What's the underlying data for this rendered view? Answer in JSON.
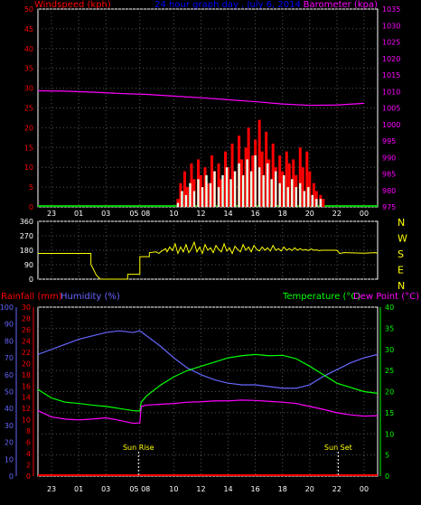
{
  "header": {
    "left_label": "Windspeed (kph)",
    "center_label": "24 hour graph day , July 6, 2014",
    "right_label": "Barometer (kpa)"
  },
  "colors": {
    "background": "#000000",
    "panel_border": "#ffffff",
    "grid": "#555555",
    "axis_red": "#ff0000",
    "axis_magenta": "#ff00ff",
    "axis_blue": "#6666ff",
    "axis_green": "#00ff00",
    "axis_yellow": "#ffff00",
    "wind_gust": "#ff0000",
    "wind_avg": "#e8ffe8",
    "wind_base": "#00cc00",
    "barometer": "#ff00ff",
    "direction": "#ffff00",
    "humidity": "#6666ff",
    "temperature": "#00ff00",
    "dew_point": "#ff00ff",
    "rain": "#ff0000",
    "sun_marker": "#ffff00"
  },
  "chart_data": [
    {
      "type": "bar",
      "name": "wind",
      "title": "",
      "ylabel": "Windspeed (kph)",
      "ylim": [
        0,
        50
      ],
      "yticks": [
        0,
        5,
        10,
        15,
        20,
        25,
        30,
        35,
        40,
        45,
        50
      ],
      "y2label": "Barometer (kpa)",
      "y2lim": [
        975,
        1035
      ],
      "y2ticks": [
        975,
        980,
        985,
        990,
        995,
        1000,
        1005,
        1010,
        1015,
        1020,
        1025,
        1030,
        1035
      ],
      "xlim": [
        22,
        47
      ],
      "xticks": [
        "23",
        "01",
        "03",
        "05 08",
        "10",
        "12",
        "14",
        "16",
        "18",
        "20",
        "22",
        "00"
      ],
      "xtick_positions": [
        23,
        25,
        27,
        29.5,
        32,
        34,
        36,
        38,
        40,
        42,
        44,
        46
      ],
      "gust_max": [
        [
          32.3,
          2
        ],
        [
          32.5,
          6
        ],
        [
          32.8,
          9
        ],
        [
          33.0,
          5
        ],
        [
          33.3,
          11
        ],
        [
          33.5,
          7
        ],
        [
          33.8,
          12
        ],
        [
          34.0,
          8
        ],
        [
          34.3,
          10
        ],
        [
          34.5,
          6
        ],
        [
          34.8,
          13
        ],
        [
          35.0,
          9
        ],
        [
          35.3,
          11
        ],
        [
          35.5,
          7
        ],
        [
          35.8,
          14
        ],
        [
          36.0,
          10
        ],
        [
          36.3,
          16
        ],
        [
          36.5,
          9
        ],
        [
          36.8,
          18
        ],
        [
          37.0,
          12
        ],
        [
          37.3,
          15
        ],
        [
          37.5,
          20
        ],
        [
          37.8,
          13
        ],
        [
          38.0,
          17
        ],
        [
          38.3,
          22
        ],
        [
          38.5,
          14
        ],
        [
          38.8,
          19
        ],
        [
          39.0,
          12
        ],
        [
          39.3,
          16
        ],
        [
          39.5,
          10
        ],
        [
          39.8,
          13
        ],
        [
          40.0,
          9
        ],
        [
          40.3,
          14
        ],
        [
          40.5,
          11
        ],
        [
          40.8,
          12
        ],
        [
          41.0,
          8
        ],
        [
          41.3,
          15
        ],
        [
          41.5,
          10
        ],
        [
          41.8,
          14
        ],
        [
          42.0,
          9
        ],
        [
          42.3,
          6
        ],
        [
          42.5,
          4
        ],
        [
          42.8,
          3
        ],
        [
          43.0,
          2
        ]
      ],
      "avg_max": [
        [
          32.3,
          1
        ],
        [
          32.6,
          4
        ],
        [
          32.9,
          3
        ],
        [
          33.2,
          6
        ],
        [
          33.5,
          4
        ],
        [
          33.8,
          7
        ],
        [
          34.1,
          5
        ],
        [
          34.4,
          8
        ],
        [
          34.7,
          6
        ],
        [
          35.0,
          9
        ],
        [
          35.3,
          5
        ],
        [
          35.6,
          8
        ],
        [
          35.9,
          10
        ],
        [
          36.2,
          7
        ],
        [
          36.5,
          9
        ],
        [
          36.8,
          11
        ],
        [
          37.1,
          8
        ],
        [
          37.4,
          12
        ],
        [
          37.7,
          9
        ],
        [
          38.0,
          13
        ],
        [
          38.3,
          10
        ],
        [
          38.6,
          8
        ],
        [
          38.9,
          11
        ],
        [
          39.2,
          7
        ],
        [
          39.5,
          9
        ],
        [
          39.8,
          6
        ],
        [
          40.1,
          8
        ],
        [
          40.4,
          5
        ],
        [
          40.7,
          7
        ],
        [
          41.0,
          5
        ],
        [
          41.3,
          6
        ],
        [
          41.6,
          4
        ],
        [
          41.9,
          5
        ],
        [
          42.2,
          3
        ],
        [
          42.5,
          2
        ],
        [
          42.8,
          2
        ]
      ],
      "barometer": [
        [
          22,
          1010.2
        ],
        [
          24,
          1010.1
        ],
        [
          26,
          1009.8
        ],
        [
          28,
          1009.4
        ],
        [
          30,
          1009.1
        ],
        [
          32,
          1008.6
        ],
        [
          34,
          1008.1
        ],
        [
          36,
          1007.5
        ],
        [
          38,
          1006.9
        ],
        [
          40,
          1006.2
        ],
        [
          42,
          1005.8
        ],
        [
          44,
          1005.9
        ],
        [
          46,
          1006.4
        ]
      ]
    },
    {
      "type": "line",
      "name": "wind_direction",
      "title": "",
      "ylim": [
        0,
        360
      ],
      "yticks": [
        0,
        90,
        180,
        270,
        360
      ],
      "right_labels": [
        "N",
        "W",
        "S",
        "E",
        "N"
      ],
      "xlim": [
        22,
        47
      ],
      "direction": [
        [
          22,
          160
        ],
        [
          25.9,
          160
        ],
        [
          25.9,
          90
        ],
        [
          26,
          75
        ],
        [
          26.3,
          25
        ],
        [
          26.6,
          0
        ],
        [
          28.6,
          0
        ],
        [
          28.6,
          30
        ],
        [
          29.5,
          30
        ],
        [
          29.5,
          140
        ],
        [
          30.2,
          140
        ],
        [
          30.2,
          165
        ],
        [
          30.7,
          170
        ],
        [
          30.9,
          160
        ],
        [
          31.1,
          175
        ],
        [
          31.4,
          190
        ],
        [
          31.5,
          170
        ],
        [
          31.7,
          200
        ],
        [
          31.9,
          178
        ],
        [
          32.1,
          220
        ],
        [
          32.3,
          160
        ],
        [
          32.5,
          200
        ],
        [
          32.7,
          170
        ],
        [
          32.9,
          215
        ],
        [
          33.1,
          165
        ],
        [
          33.3,
          190
        ],
        [
          33.5,
          230
        ],
        [
          33.7,
          170
        ],
        [
          33.9,
          200
        ],
        [
          34.1,
          160
        ],
        [
          34.3,
          215
        ],
        [
          34.5,
          180
        ],
        [
          34.7,
          195
        ],
        [
          34.9,
          165
        ],
        [
          35.1,
          210
        ],
        [
          35.3,
          185
        ],
        [
          35.5,
          170
        ],
        [
          35.7,
          220
        ],
        [
          35.9,
          175
        ],
        [
          36.1,
          195
        ],
        [
          36.3,
          160
        ],
        [
          36.5,
          205
        ],
        [
          36.7,
          185
        ],
        [
          36.9,
          170
        ],
        [
          37.1,
          215
        ],
        [
          37.3,
          180
        ],
        [
          37.5,
          200
        ],
        [
          37.7,
          170
        ],
        [
          37.9,
          210
        ],
        [
          38.1,
          185
        ],
        [
          38.3,
          175
        ],
        [
          38.5,
          200
        ],
        [
          38.7,
          180
        ],
        [
          38.9,
          195
        ],
        [
          39.1,
          175
        ],
        [
          39.3,
          210
        ],
        [
          39.5,
          180
        ],
        [
          39.7,
          190
        ],
        [
          39.9,
          175
        ],
        [
          40.1,
          200
        ],
        [
          40.3,
          180
        ],
        [
          40.5,
          190
        ],
        [
          40.7,
          178
        ],
        [
          40.9,
          195
        ],
        [
          41.1,
          180
        ],
        [
          41.3,
          190
        ],
        [
          41.5,
          180
        ],
        [
          41.7,
          185
        ],
        [
          41.9,
          178
        ],
        [
          42.1,
          188
        ],
        [
          42.3,
          180
        ],
        [
          42.5,
          182
        ],
        [
          42.7,
          178
        ],
        [
          42.9,
          180
        ],
        [
          43.1,
          180
        ],
        [
          43.5,
          180
        ],
        [
          44,
          180
        ],
        [
          44.2,
          160
        ],
        [
          44.5,
          165
        ],
        [
          46,
          162
        ],
        [
          46.8,
          165
        ],
        [
          47,
          162
        ]
      ]
    },
    {
      "type": "line",
      "name": "climate",
      "title": "",
      "ylabel_rain": "Rainfall (mm)",
      "ylabel_humidity": "Humidity (%)",
      "ylabel_temperature": "Temperature (°C)",
      "ylabel_dewpoint": "Dew Point (°C)",
      "humidity_lim": [
        0,
        100
      ],
      "humidity_ticks": [
        0,
        10,
        20,
        30,
        40,
        50,
        60,
        70,
        80,
        90,
        100
      ],
      "rain_lim": [
        0,
        30
      ],
      "rain_ticks": [
        0,
        2,
        4,
        6,
        8,
        10,
        12,
        14,
        16,
        18,
        20,
        22,
        24,
        26,
        28,
        30
      ],
      "temp_lim": [
        0,
        40
      ],
      "temp_ticks": [
        0,
        5,
        10,
        15,
        20,
        25,
        30,
        35,
        40
      ],
      "xlim": [
        22,
        47
      ],
      "xticks": [
        "23",
        "01",
        "03",
        "05 08",
        "10",
        "12",
        "14",
        "16",
        "18",
        "20",
        "22",
        "00"
      ],
      "xtick_positions": [
        23,
        25,
        27,
        29.5,
        32,
        34,
        36,
        38,
        40,
        42,
        44,
        46
      ],
      "humidity": [
        [
          22,
          72
        ],
        [
          23,
          75
        ],
        [
          24,
          78
        ],
        [
          25,
          81
        ],
        [
          26,
          83
        ],
        [
          27,
          85
        ],
        [
          28,
          86
        ],
        [
          29,
          85
        ],
        [
          29.5,
          86
        ],
        [
          30,
          83
        ],
        [
          31,
          77
        ],
        [
          32,
          70
        ],
        [
          33,
          64
        ],
        [
          34,
          60
        ],
        [
          35,
          57
        ],
        [
          36,
          55
        ],
        [
          37,
          54
        ],
        [
          38,
          54
        ],
        [
          39,
          53
        ],
        [
          40,
          52
        ],
        [
          41,
          52
        ],
        [
          42,
          54
        ],
        [
          43,
          59
        ],
        [
          44,
          63
        ],
        [
          45,
          67
        ],
        [
          46,
          70
        ],
        [
          47,
          72
        ]
      ],
      "temperature": [
        [
          22,
          20.5
        ],
        [
          23,
          18.5
        ],
        [
          24,
          17.5
        ],
        [
          25,
          17.2
        ],
        [
          26,
          16.8
        ],
        [
          27,
          16.5
        ],
        [
          28,
          16.0
        ],
        [
          29,
          15.5
        ],
        [
          29.5,
          15.4
        ],
        [
          29.6,
          17.5
        ],
        [
          30,
          19
        ],
        [
          31,
          21.5
        ],
        [
          32,
          23.5
        ],
        [
          33,
          25
        ],
        [
          34,
          26
        ],
        [
          35,
          27
        ],
        [
          36,
          28
        ],
        [
          37,
          28.5
        ],
        [
          38,
          28.8
        ],
        [
          39,
          28.5
        ],
        [
          40,
          28.6
        ],
        [
          41,
          27.8
        ],
        [
          42,
          26
        ],
        [
          43,
          24
        ],
        [
          44,
          22
        ],
        [
          45,
          21
        ],
        [
          46,
          20
        ],
        [
          47,
          19.6
        ]
      ],
      "dew_point": [
        [
          22,
          15.5
        ],
        [
          23,
          14.0
        ],
        [
          24,
          13.5
        ],
        [
          25,
          13.3
        ],
        [
          26,
          13.5
        ],
        [
          27,
          13.8
        ],
        [
          28,
          13.2
        ],
        [
          29,
          12.5
        ],
        [
          29.5,
          12.6
        ],
        [
          29.6,
          16.5
        ],
        [
          30,
          16.8
        ],
        [
          31,
          17.0
        ],
        [
          32,
          17.2
        ],
        [
          33,
          17.5
        ],
        [
          34,
          17.6
        ],
        [
          35,
          17.8
        ],
        [
          36,
          17.8
        ],
        [
          37,
          18.0
        ],
        [
          38,
          17.9
        ],
        [
          39,
          17.7
        ],
        [
          40,
          17.5
        ],
        [
          41,
          17.2
        ],
        [
          42,
          16.5
        ],
        [
          43,
          15.8
        ],
        [
          44,
          15.0
        ],
        [
          45,
          14.5
        ],
        [
          46,
          14.2
        ],
        [
          47,
          14.3
        ]
      ],
      "rain": [
        [
          22,
          0
        ],
        [
          47,
          0
        ]
      ],
      "markers": [
        {
          "label": "Sun Rise",
          "x": 29.4
        },
        {
          "label": "Sun Set",
          "x": 44.1
        }
      ]
    }
  ],
  "panel2_axis": {
    "left_labels": [
      "360",
      "270",
      "180",
      "90",
      "0"
    ],
    "right_letters": [
      "N",
      "W",
      "S",
      "E",
      "N"
    ]
  },
  "panel3_header": {
    "rain_label": "Rainfall (mm)",
    "humidity_label": "Humidity (%)",
    "temperature_label": "Temperature (°C)",
    "dewpoint_label": "Dew Point (°C)"
  },
  "markers": {
    "sunrise_label": "Sun Rise",
    "sunset_label": "Sun Set"
  }
}
